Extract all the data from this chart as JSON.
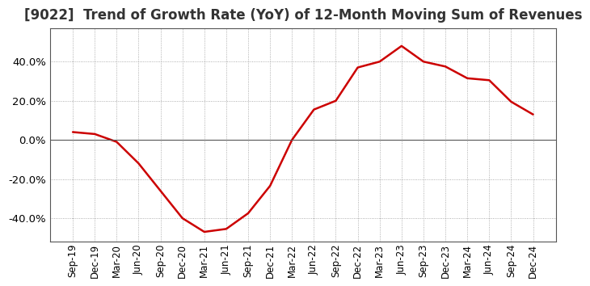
{
  "title": "[9022]  Trend of Growth Rate (YoY) of 12-Month Moving Sum of Revenues",
  "title_fontsize": 12,
  "line_color": "#cc0000",
  "line_width": 1.8,
  "background_color": "#ffffff",
  "plot_bg_color": "#ffffff",
  "grid_color": "#999999",
  "zero_line_color": "#555555",
  "x_labels": [
    "Sep-19",
    "Dec-19",
    "Mar-20",
    "Jun-20",
    "Sep-20",
    "Dec-20",
    "Mar-21",
    "Jun-21",
    "Sep-21",
    "Dec-21",
    "Mar-22",
    "Jun-22",
    "Sep-22",
    "Dec-22",
    "Mar-23",
    "Jun-23",
    "Sep-23",
    "Dec-23",
    "Mar-24",
    "Jun-24",
    "Sep-24",
    "Dec-24"
  ],
  "y_values": [
    0.04,
    0.03,
    -0.01,
    -0.12,
    -0.26,
    -0.4,
    -0.47,
    -0.455,
    -0.375,
    -0.235,
    0.0,
    0.155,
    0.2,
    0.37,
    0.4,
    0.48,
    0.4,
    0.375,
    0.315,
    0.305,
    0.195,
    0.13
  ],
  "ylim": [
    -0.52,
    0.57
  ],
  "yticks": [
    -0.4,
    -0.2,
    0.0,
    0.2,
    0.4
  ],
  "tick_fontsize": 9.5,
  "x_tick_fontsize": 8.5,
  "spine_color": "#555555"
}
